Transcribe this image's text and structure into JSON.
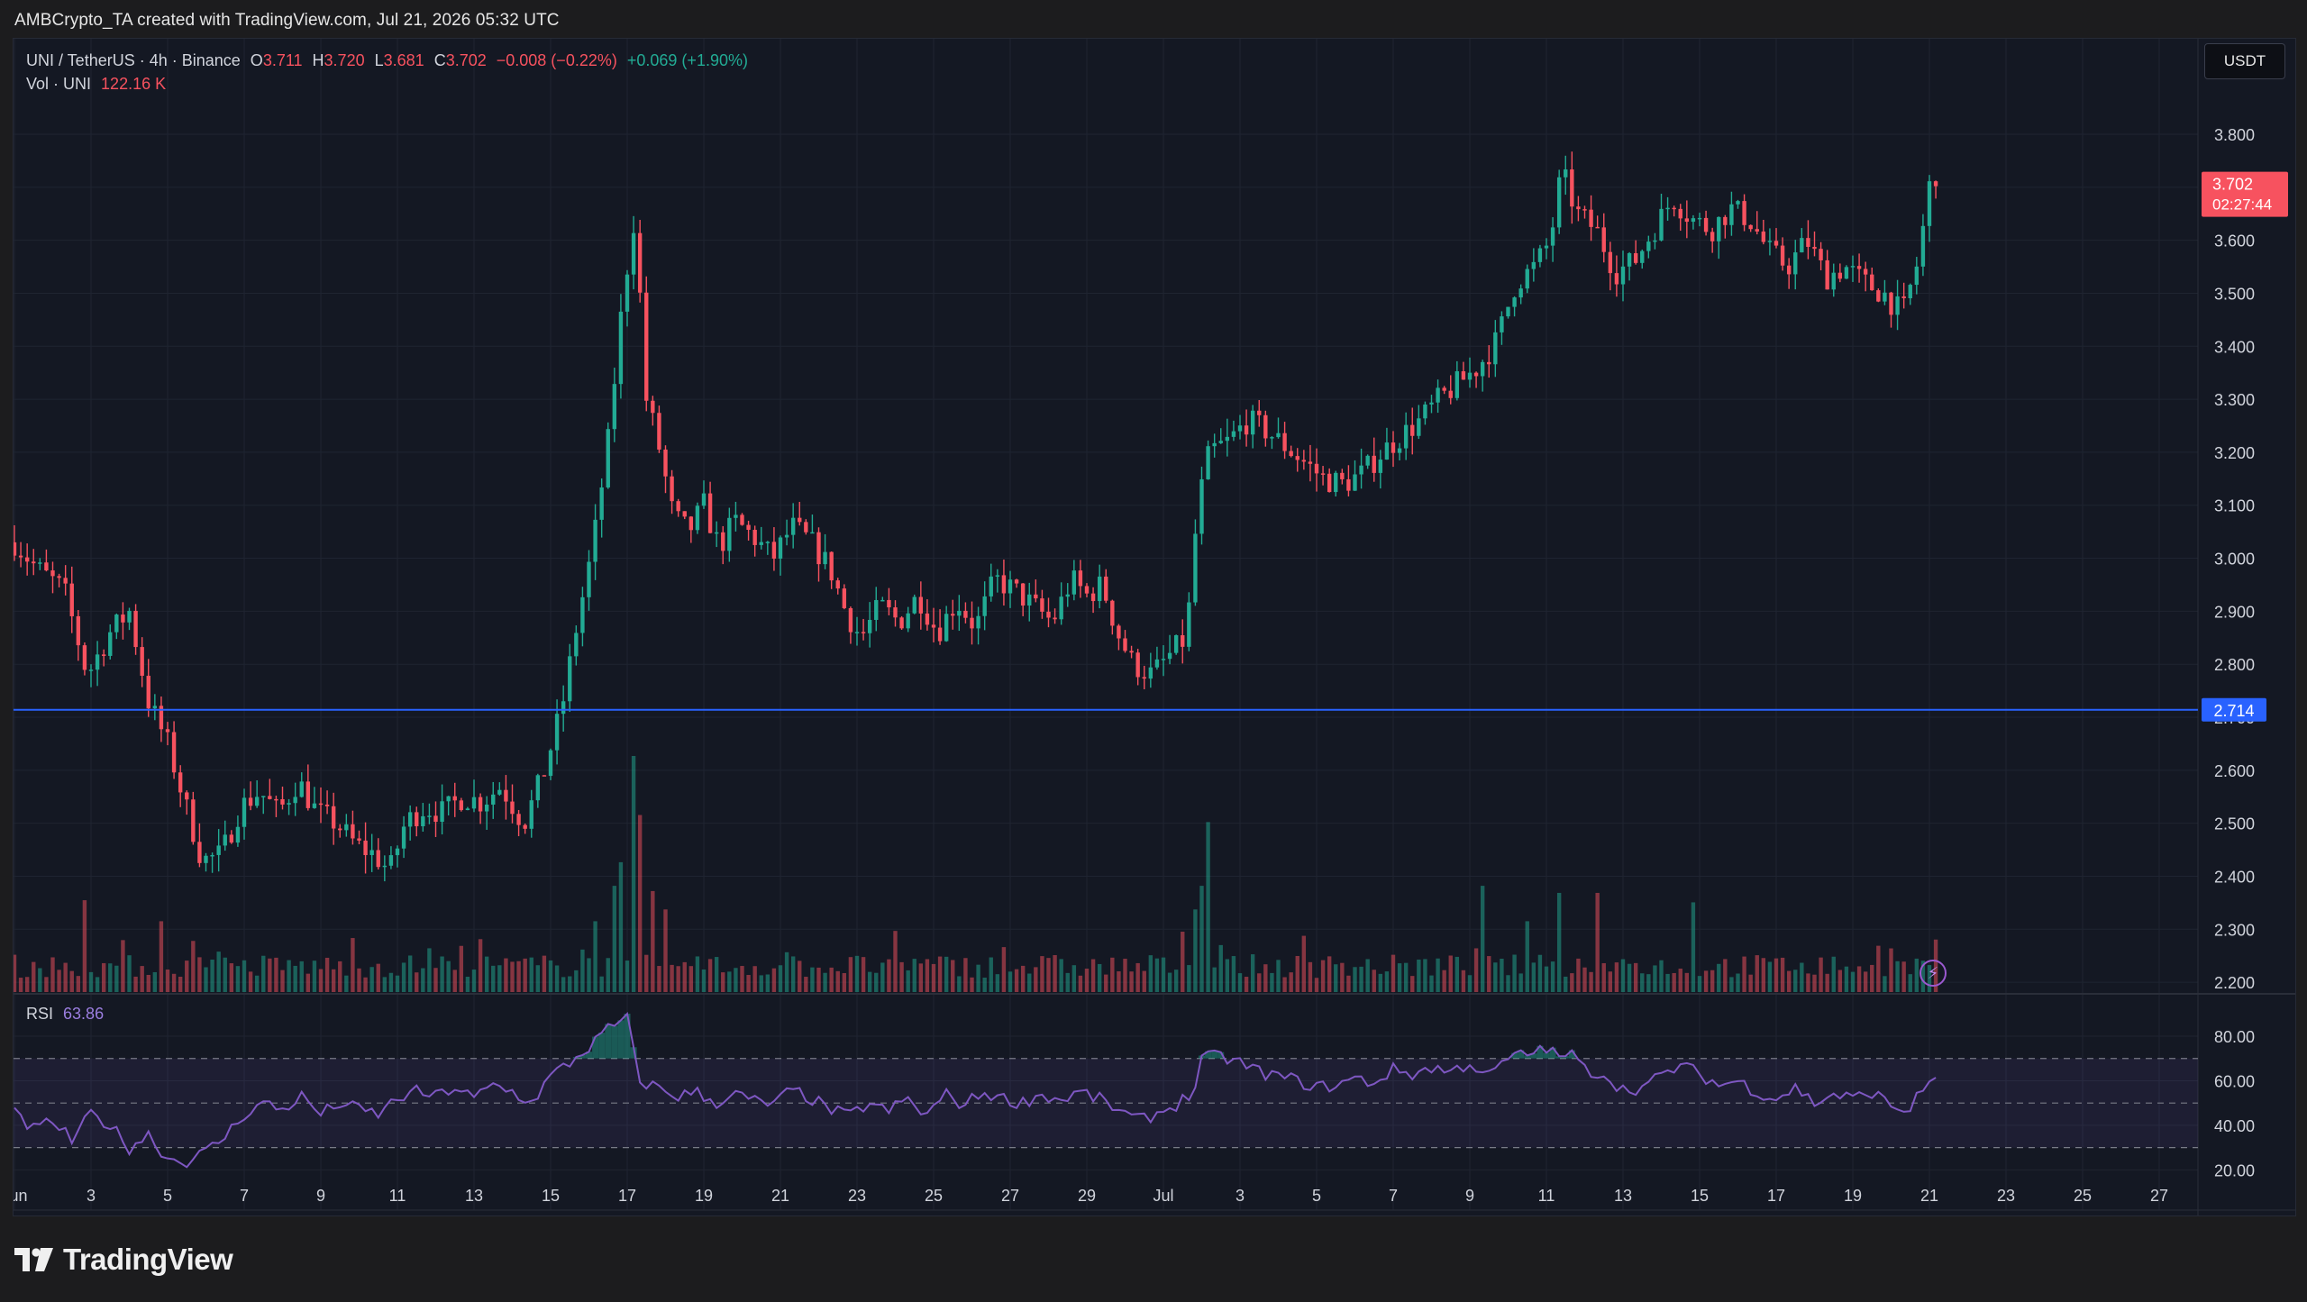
{
  "header": {
    "credit": "AMBCrypto_TA created with TradingView.com, Jul 21, 2026 05:32 UTC"
  },
  "legend": {
    "symbol": "UNI / TetherUS · 4h · Binance",
    "open_label": "O",
    "open": "3.711",
    "high_label": "H",
    "high": "3.720",
    "low_label": "L",
    "low": "3.681",
    "close_label": "C",
    "close": "3.702",
    "change": "−0.008 (−0.22%)",
    "change2": "+0.069 (+1.90%)",
    "vol_label": "Vol · UNI",
    "vol_value": "122.16 K",
    "rsi_label": "RSI",
    "rsi_value": "63.86"
  },
  "currency_button": "USDT",
  "price_tag": {
    "price": "3.702",
    "countdown": "02:27:44"
  },
  "horizontal_line_tag": "2.714",
  "footer": {
    "brand": "TradingView"
  },
  "colors": {
    "up": "#22ab94",
    "down": "#f7525f",
    "rsi_line": "#7e57c2",
    "hline": "#2962ff",
    "background": "#141823",
    "text": "#d1d4dc"
  },
  "chart_data": {
    "type": "candlestick",
    "timeframe": "4h",
    "y_ticks": [
      "3.800",
      "3.700",
      "3.600",
      "3.500",
      "3.400",
      "3.300",
      "3.200",
      "3.100",
      "3.000",
      "2.900",
      "2.800",
      "2.700",
      "2.600",
      "2.500",
      "2.400",
      "2.300",
      "2.200"
    ],
    "x_ticks": [
      {
        "label": "Jun",
        "day": 1
      },
      {
        "label": "3",
        "day": 3
      },
      {
        "label": "5",
        "day": 5
      },
      {
        "label": "7",
        "day": 7
      },
      {
        "label": "9",
        "day": 9
      },
      {
        "label": "11",
        "day": 11
      },
      {
        "label": "13",
        "day": 13
      },
      {
        "label": "15",
        "day": 15
      },
      {
        "label": "17",
        "day": 17
      },
      {
        "label": "19",
        "day": 19
      },
      {
        "label": "21",
        "day": 21
      },
      {
        "label": "23",
        "day": 23
      },
      {
        "label": "25",
        "day": 25
      },
      {
        "label": "27",
        "day": 27
      },
      {
        "label": "29",
        "day": 29
      },
      {
        "label": "Jul",
        "day": 31
      },
      {
        "label": "3",
        "day": 33
      },
      {
        "label": "5",
        "day": 35
      },
      {
        "label": "7",
        "day": 37
      },
      {
        "label": "9",
        "day": 39
      },
      {
        "label": "11",
        "day": 41
      },
      {
        "label": "13",
        "day": 43
      },
      {
        "label": "15",
        "day": 45
      },
      {
        "label": "17",
        "day": 47
      },
      {
        "label": "19",
        "day": 49
      },
      {
        "label": "21",
        "day": 51
      },
      {
        "label": "23",
        "day": 53
      },
      {
        "label": "25",
        "day": 55
      },
      {
        "label": "27",
        "day": 57
      }
    ],
    "rsi_ticks": [
      "80.00",
      "60.00",
      "40.00",
      "20.00"
    ],
    "rsi_levels": [
      70,
      50,
      30
    ],
    "horizontal_line": 2.714,
    "last_price": 3.702,
    "anchors": [
      [
        1.0,
        3.03
      ],
      [
        1.6,
        2.98
      ],
      [
        2.3,
        2.94
      ],
      [
        2.9,
        2.78
      ],
      [
        3.5,
        2.86
      ],
      [
        4.0,
        2.9
      ],
      [
        4.5,
        2.73
      ],
      [
        5.0,
        2.65
      ],
      [
        5.4,
        2.55
      ],
      [
        5.9,
        2.43
      ],
      [
        6.4,
        2.44
      ],
      [
        6.9,
        2.53
      ],
      [
        7.4,
        2.56
      ],
      [
        7.9,
        2.52
      ],
      [
        8.4,
        2.58
      ],
      [
        8.9,
        2.52
      ],
      [
        9.4,
        2.5
      ],
      [
        9.9,
        2.46
      ],
      [
        10.4,
        2.44
      ],
      [
        10.8,
        2.41
      ],
      [
        11.2,
        2.5
      ],
      [
        11.7,
        2.53
      ],
      [
        12.2,
        2.52
      ],
      [
        12.7,
        2.55
      ],
      [
        13.2,
        2.54
      ],
      [
        13.7,
        2.57
      ],
      [
        14.3,
        2.5
      ],
      [
        14.8,
        2.59
      ],
      [
        15.3,
        2.72
      ],
      [
        15.7,
        2.88
      ],
      [
        16.1,
        3.02
      ],
      [
        16.5,
        3.22
      ],
      [
        16.9,
        3.5
      ],
      [
        17.2,
        3.65
      ],
      [
        17.5,
        3.3
      ],
      [
        17.8,
        3.22
      ],
      [
        18.2,
        3.08
      ],
      [
        18.6,
        3.05
      ],
      [
        19.0,
        3.1
      ],
      [
        19.4,
        3.02
      ],
      [
        19.8,
        3.07
      ],
      [
        20.3,
        3.04
      ],
      [
        20.8,
        3.0
      ],
      [
        21.3,
        3.06
      ],
      [
        21.8,
        3.03
      ],
      [
        22.3,
        2.98
      ],
      [
        22.7,
        2.9
      ],
      [
        23.1,
        2.85
      ],
      [
        23.6,
        2.91
      ],
      [
        24.1,
        2.88
      ],
      [
        24.6,
        2.93
      ],
      [
        25.1,
        2.86
      ],
      [
        25.6,
        2.92
      ],
      [
        26.1,
        2.87
      ],
      [
        26.6,
        2.96
      ],
      [
        27.1,
        2.94
      ],
      [
        27.6,
        2.91
      ],
      [
        28.1,
        2.88
      ],
      [
        28.6,
        2.96
      ],
      [
        29.0,
        2.93
      ],
      [
        29.4,
        2.95
      ],
      [
        29.8,
        2.86
      ],
      [
        30.2,
        2.8
      ],
      [
        30.7,
        2.78
      ],
      [
        31.2,
        2.82
      ],
      [
        31.6,
        2.85
      ],
      [
        31.9,
        3.1
      ],
      [
        32.2,
        3.2
      ],
      [
        32.7,
        3.22
      ],
      [
        33.2,
        3.26
      ],
      [
        33.7,
        3.24
      ],
      [
        34.2,
        3.21
      ],
      [
        34.7,
        3.18
      ],
      [
        35.2,
        3.15
      ],
      [
        35.7,
        3.14
      ],
      [
        36.2,
        3.16
      ],
      [
        36.7,
        3.2
      ],
      [
        37.2,
        3.23
      ],
      [
        37.7,
        3.26
      ],
      [
        38.2,
        3.3
      ],
      [
        38.7,
        3.33
      ],
      [
        39.2,
        3.36
      ],
      [
        39.7,
        3.41
      ],
      [
        40.2,
        3.52
      ],
      [
        40.7,
        3.55
      ],
      [
        41.1,
        3.6
      ],
      [
        41.4,
        3.73
      ],
      [
        41.8,
        3.65
      ],
      [
        42.3,
        3.62
      ],
      [
        42.8,
        3.54
      ],
      [
        43.3,
        3.56
      ],
      [
        43.8,
        3.62
      ],
      [
        44.3,
        3.68
      ],
      [
        44.8,
        3.64
      ],
      [
        45.3,
        3.62
      ],
      [
        45.8,
        3.66
      ],
      [
        46.3,
        3.64
      ],
      [
        46.8,
        3.58
      ],
      [
        47.3,
        3.55
      ],
      [
        47.8,
        3.6
      ],
      [
        48.3,
        3.53
      ],
      [
        48.8,
        3.55
      ],
      [
        49.3,
        3.52
      ],
      [
        49.8,
        3.5
      ],
      [
        50.3,
        3.46
      ],
      [
        50.7,
        3.56
      ],
      [
        51.0,
        3.7
      ],
      [
        51.2,
        3.702
      ]
    ],
    "rsi_anchors": [
      [
        1.0,
        45
      ],
      [
        1.5,
        38
      ],
      [
        2.0,
        42
      ],
      [
        2.5,
        33
      ],
      [
        3.0,
        45
      ],
      [
        3.5,
        40
      ],
      [
        4.0,
        30
      ],
      [
        4.5,
        36
      ],
      [
        5.0,
        25
      ],
      [
        5.5,
        24
      ],
      [
        6.0,
        28
      ],
      [
        6.5,
        35
      ],
      [
        7.0,
        45
      ],
      [
        7.5,
        50
      ],
      [
        8.0,
        47
      ],
      [
        8.5,
        53
      ],
      [
        9.0,
        45
      ],
      [
        9.5,
        50
      ],
      [
        10.0,
        47
      ],
      [
        10.5,
        45
      ],
      [
        11.0,
        52
      ],
      [
        11.5,
        55
      ],
      [
        12.0,
        53
      ],
      [
        12.5,
        57
      ],
      [
        13.0,
        52
      ],
      [
        13.5,
        58
      ],
      [
        14.0,
        55
      ],
      [
        14.5,
        50
      ],
      [
        15.0,
        62
      ],
      [
        15.5,
        68
      ],
      [
        16.0,
        75
      ],
      [
        16.5,
        83
      ],
      [
        17.0,
        88
      ],
      [
        17.3,
        60
      ],
      [
        17.8,
        57
      ],
      [
        18.3,
        53
      ],
      [
        18.8,
        55
      ],
      [
        19.3,
        50
      ],
      [
        19.8,
        54
      ],
      [
        20.3,
        51
      ],
      [
        20.8,
        49
      ],
      [
        21.3,
        56
      ],
      [
        21.8,
        52
      ],
      [
        22.3,
        47
      ],
      [
        22.8,
        44
      ],
      [
        23.3,
        50
      ],
      [
        23.8,
        46
      ],
      [
        24.3,
        52
      ],
      [
        24.8,
        44
      ],
      [
        25.3,
        54
      ],
      [
        25.8,
        49
      ],
      [
        26.3,
        55
      ],
      [
        26.8,
        52
      ],
      [
        27.3,
        50
      ],
      [
        27.8,
        54
      ],
      [
        28.3,
        51
      ],
      [
        28.8,
        55
      ],
      [
        29.3,
        52
      ],
      [
        29.8,
        47
      ],
      [
        30.3,
        42
      ],
      [
        30.8,
        45
      ],
      [
        31.3,
        49
      ],
      [
        31.8,
        55
      ],
      [
        32.0,
        70
      ],
      [
        32.5,
        71
      ],
      [
        33.0,
        68
      ],
      [
        33.5,
        64
      ],
      [
        34.0,
        62
      ],
      [
        34.5,
        60
      ],
      [
        35.0,
        57
      ],
      [
        35.5,
        58
      ],
      [
        36.0,
        61
      ],
      [
        36.5,
        59
      ],
      [
        37.0,
        65
      ],
      [
        37.5,
        63
      ],
      [
        38.0,
        66
      ],
      [
        38.5,
        64
      ],
      [
        39.0,
        68
      ],
      [
        39.5,
        62
      ],
      [
        40.0,
        70
      ],
      [
        40.5,
        72
      ],
      [
        41.0,
        75
      ],
      [
        41.3,
        70
      ],
      [
        41.6,
        73
      ],
      [
        42.0,
        65
      ],
      [
        42.5,
        63
      ],
      [
        43.0,
        56
      ],
      [
        43.5,
        57
      ],
      [
        44.0,
        62
      ],
      [
        44.5,
        67
      ],
      [
        45.0,
        63
      ],
      [
        45.5,
        58
      ],
      [
        46.0,
        60
      ],
      [
        46.5,
        55
      ],
      [
        47.0,
        52
      ],
      [
        47.5,
        57
      ],
      [
        48.0,
        50
      ],
      [
        48.5,
        54
      ],
      [
        49.0,
        52
      ],
      [
        49.5,
        55
      ],
      [
        50.0,
        49
      ],
      [
        50.4,
        46
      ],
      [
        50.8,
        55
      ],
      [
        51.2,
        64
      ]
    ],
    "volume_spikes": [
      [
        16.6,
        0.45
      ],
      [
        16.9,
        0.55
      ],
      [
        17.1,
        1.0
      ],
      [
        17.3,
        0.75
      ],
      [
        17.6,
        0.4
      ],
      [
        18.0,
        0.35
      ],
      [
        32.0,
        0.45
      ],
      [
        32.2,
        0.72
      ],
      [
        31.9,
        0.35
      ],
      [
        39.3,
        0.45
      ],
      [
        41.4,
        0.42
      ],
      [
        40.5,
        0.3
      ],
      [
        42.4,
        0.42
      ],
      [
        44.8,
        0.38
      ],
      [
        16.2,
        0.3
      ],
      [
        15.8,
        0.18
      ],
      [
        2.8,
        0.28
      ],
      [
        4.8,
        0.3
      ],
      [
        3.8,
        0.22
      ]
    ]
  }
}
